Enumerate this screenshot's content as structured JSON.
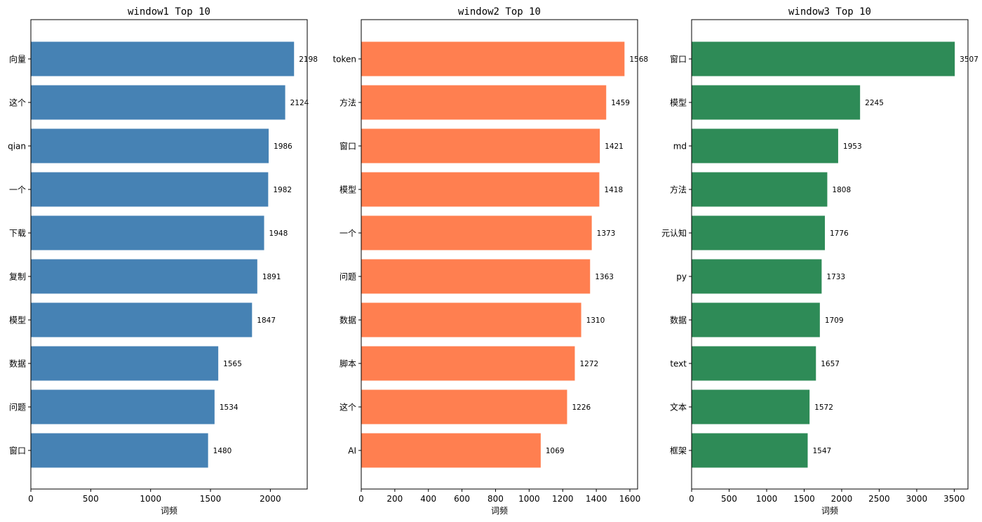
{
  "chart_data": [
    {
      "type": "bar",
      "orientation": "horizontal",
      "title": "window1 Top 10",
      "xlabel": "词频",
      "ylabel": "",
      "xlim": [
        0,
        2308
      ],
      "xticks": [
        0,
        500,
        1000,
        1500,
        2000
      ],
      "color": "#4682b4",
      "categories": [
        "向量",
        "这个",
        "qian",
        "一个",
        "下载",
        "复制",
        "模型",
        "数据",
        "问题",
        "窗口"
      ],
      "values": [
        2198,
        2124,
        1986,
        1982,
        1948,
        1891,
        1847,
        1565,
        1534,
        1480
      ]
    },
    {
      "type": "bar",
      "orientation": "horizontal",
      "title": "window2 Top 10",
      "xlabel": "词频",
      "ylabel": "",
      "xlim": [
        0,
        1646
      ],
      "xticks": [
        0,
        200,
        400,
        600,
        800,
        1000,
        1200,
        1400,
        1600
      ],
      "color": "#ff7f50",
      "categories": [
        "token",
        "方法",
        "窗口",
        "模型",
        "一个",
        "问题",
        "数据",
        "脚本",
        "这个",
        "AI"
      ],
      "values": [
        1568,
        1459,
        1421,
        1418,
        1373,
        1363,
        1310,
        1272,
        1226,
        1069
      ]
    },
    {
      "type": "bar",
      "orientation": "horizontal",
      "title": "window3 Top 10",
      "xlabel": "词频",
      "ylabel": "",
      "xlim": [
        0,
        3683
      ],
      "xticks": [
        0,
        500,
        1000,
        1500,
        2000,
        2500,
        3000,
        3500
      ],
      "color": "#2e8b57",
      "categories": [
        "窗口",
        "模型",
        "md",
        "方法",
        "元认知",
        "py",
        "数据",
        "text",
        "文本",
        "框架"
      ],
      "values": [
        3507,
        2245,
        1953,
        1808,
        1776,
        1733,
        1709,
        1657,
        1572,
        1547
      ]
    }
  ]
}
